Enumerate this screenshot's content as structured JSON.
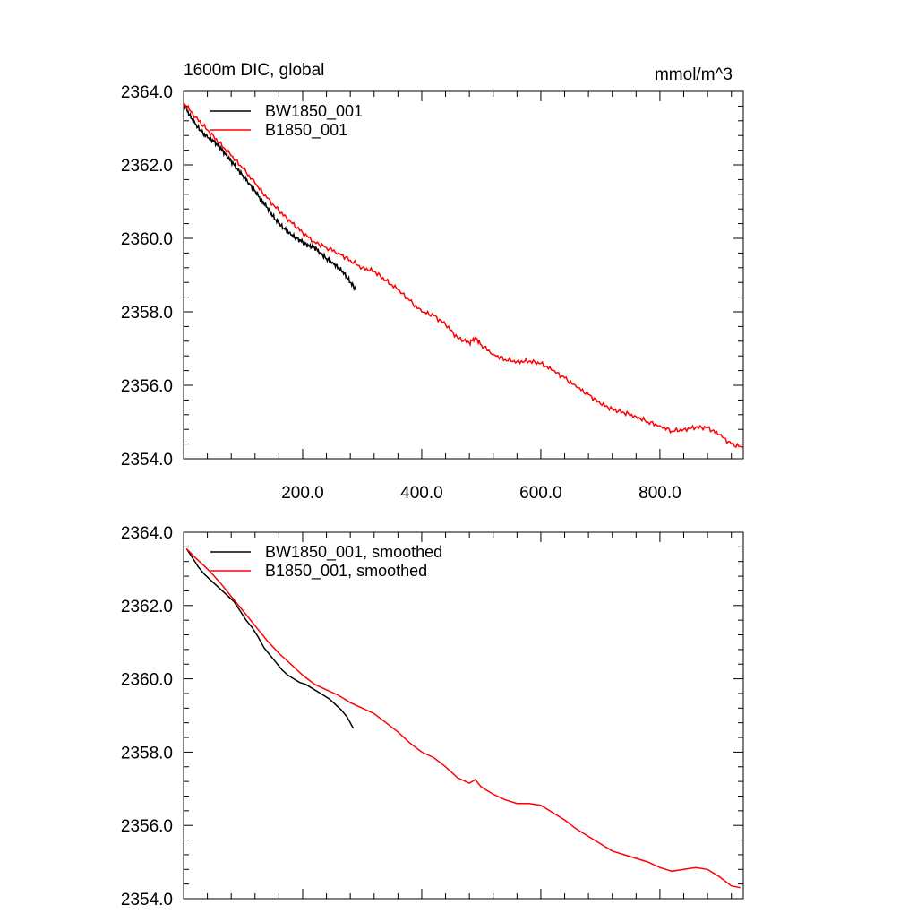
{
  "chart_data": [
    {
      "type": "line",
      "title": "1600m DIC, global",
      "units": "mmol/m^3",
      "xlabel": "",
      "ylabel": "",
      "xlim": [
        0,
        940
      ],
      "ylim": [
        2354.0,
        2364.0
      ],
      "x_ticks": [
        200,
        400,
        600,
        800
      ],
      "x_tick_labels": [
        "200.0",
        "400.0",
        "600.0",
        "800.0"
      ],
      "y_ticks": [
        2354,
        2356,
        2358,
        2360,
        2362,
        2364
      ],
      "y_tick_labels": [
        "2354.0",
        "2356.0",
        "2358.0",
        "2360.0",
        "2362.0",
        "2364.0"
      ],
      "legend_position": "top-left",
      "grid": false,
      "series": [
        {
          "name": "BW1850_001",
          "color": "#000000",
          "x": [
            0,
            10,
            20,
            30,
            40,
            50,
            60,
            70,
            80,
            90,
            100,
            110,
            120,
            130,
            140,
            150,
            160,
            170,
            180,
            190,
            200,
            210,
            220,
            230,
            240,
            250,
            260,
            270,
            280,
            290
          ],
          "y": [
            2363.7,
            2363.35,
            2363.1,
            2362.9,
            2362.75,
            2362.65,
            2362.5,
            2362.3,
            2362.1,
            2361.9,
            2361.7,
            2361.5,
            2361.3,
            2361.05,
            2360.85,
            2360.6,
            2360.4,
            2360.25,
            2360.1,
            2360.0,
            2359.9,
            2359.8,
            2359.75,
            2359.6,
            2359.45,
            2359.35,
            2359.2,
            2359.05,
            2358.8,
            2358.6
          ]
        },
        {
          "name": "B1850_001",
          "color": "#ff0000",
          "x": [
            0,
            20,
            40,
            60,
            80,
            100,
            120,
            140,
            160,
            180,
            200,
            220,
            240,
            260,
            280,
            300,
            320,
            340,
            360,
            380,
            400,
            420,
            440,
            460,
            480,
            490,
            500,
            520,
            540,
            560,
            580,
            600,
            620,
            640,
            660,
            680,
            700,
            720,
            740,
            760,
            780,
            800,
            820,
            840,
            860,
            880,
            900,
            920,
            940
          ],
          "y": [
            2363.7,
            2363.3,
            2362.95,
            2362.6,
            2362.25,
            2361.9,
            2361.5,
            2361.1,
            2360.75,
            2360.45,
            2360.15,
            2359.9,
            2359.75,
            2359.6,
            2359.4,
            2359.2,
            2359.1,
            2358.85,
            2358.6,
            2358.3,
            2358.0,
            2357.9,
            2357.65,
            2357.3,
            2357.15,
            2357.3,
            2357.1,
            2356.85,
            2356.7,
            2356.65,
            2356.65,
            2356.6,
            2356.4,
            2356.2,
            2355.95,
            2355.75,
            2355.5,
            2355.35,
            2355.25,
            2355.15,
            2355.0,
            2354.9,
            2354.75,
            2354.8,
            2354.85,
            2354.85,
            2354.65,
            2354.4,
            2354.3
          ]
        }
      ]
    },
    {
      "type": "line",
      "title": "",
      "xlabel": "",
      "ylabel": "",
      "xlim": [
        0,
        940
      ],
      "ylim": [
        2354.0,
        2364.0
      ],
      "x_ticks": [
        200,
        400,
        600,
        800
      ],
      "y_ticks": [
        2354,
        2356,
        2358,
        2360,
        2362,
        2364
      ],
      "y_tick_labels": [
        "2354.0",
        "2356.0",
        "2358.0",
        "2360.0",
        "2362.0",
        "2364.0"
      ],
      "legend_position": "top-left",
      "grid": false,
      "series": [
        {
          "name": "BW1850_001, smoothed",
          "color": "#000000",
          "x": [
            5,
            15,
            25,
            35,
            45,
            55,
            65,
            75,
            85,
            95,
            105,
            115,
            125,
            135,
            145,
            155,
            165,
            175,
            185,
            195,
            205,
            215,
            225,
            235,
            245,
            255,
            265,
            275,
            285
          ],
          "y": [
            2363.55,
            2363.3,
            2363.05,
            2362.85,
            2362.7,
            2362.55,
            2362.4,
            2362.25,
            2362.1,
            2361.85,
            2361.6,
            2361.4,
            2361.15,
            2360.85,
            2360.65,
            2360.45,
            2360.25,
            2360.1,
            2360.0,
            2359.9,
            2359.85,
            2359.75,
            2359.65,
            2359.55,
            2359.45,
            2359.3,
            2359.15,
            2358.95,
            2358.65
          ]
        },
        {
          "name": "B1850_001, smoothed",
          "color": "#ff0000",
          "x": [
            5,
            20,
            40,
            60,
            80,
            100,
            120,
            140,
            160,
            180,
            200,
            220,
            240,
            260,
            280,
            300,
            320,
            340,
            360,
            380,
            400,
            420,
            440,
            460,
            480,
            490,
            500,
            520,
            540,
            560,
            580,
            600,
            620,
            640,
            660,
            680,
            700,
            720,
            740,
            760,
            780,
            800,
            820,
            840,
            860,
            880,
            900,
            920,
            935
          ],
          "y": [
            2363.55,
            2363.3,
            2363.0,
            2362.65,
            2362.25,
            2361.85,
            2361.45,
            2361.05,
            2360.7,
            2360.4,
            2360.1,
            2359.85,
            2359.7,
            2359.55,
            2359.35,
            2359.2,
            2359.05,
            2358.8,
            2358.55,
            2358.25,
            2358.0,
            2357.85,
            2357.6,
            2357.3,
            2357.15,
            2357.25,
            2357.05,
            2356.85,
            2356.7,
            2356.6,
            2356.6,
            2356.55,
            2356.35,
            2356.15,
            2355.9,
            2355.7,
            2355.5,
            2355.3,
            2355.2,
            2355.1,
            2355.0,
            2354.85,
            2354.75,
            2354.8,
            2354.85,
            2354.8,
            2354.6,
            2354.35,
            2354.3
          ]
        }
      ]
    }
  ]
}
